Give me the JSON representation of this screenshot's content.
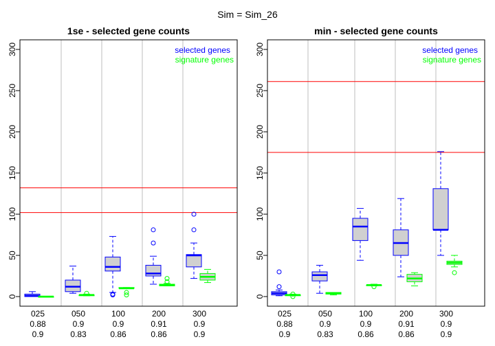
{
  "figure_title": "Sim = Sim_26",
  "colors": {
    "selected": "#0000ff",
    "signature": "#00ff00",
    "box_fill": "#d0d0d0",
    "ref_line": "#ff0000",
    "grid": "#bebebe",
    "axis": "#000000"
  },
  "chart_data": [
    {
      "type": "box",
      "title": "1se - selected gene counts",
      "ylim": [
        0,
        310
      ],
      "yticks": [
        0,
        50,
        100,
        150,
        200,
        250,
        300
      ],
      "categories": [
        "025",
        "050",
        "100",
        "200",
        "300"
      ],
      "category_label_rows": [
        [
          "025",
          "050",
          "100",
          "200",
          "300"
        ],
        [
          "0.88",
          "0.9",
          "0.9",
          "0.91",
          "0.9"
        ],
        [
          "0.9",
          "0.83",
          "0.86",
          "0.86",
          "0.9"
        ]
      ],
      "legend": {
        "position": "top-right",
        "entries": [
          "selected genes",
          "signature genes"
        ]
      },
      "hlines": [
        102,
        132
      ],
      "series": [
        {
          "name": "selected genes",
          "boxes": [
            {
              "wlo": 0,
              "q1": 0,
              "med": 1,
              "q3": 3,
              "whi": 6,
              "outliers": []
            },
            {
              "wlo": 4,
              "q1": 6,
              "med": 12,
              "q3": 20,
              "whi": 37,
              "outliers": []
            },
            {
              "wlo": 5,
              "q1": 31,
              "med": 36,
              "q3": 48,
              "whi": 73,
              "outliers": [
                2,
                3
              ]
            },
            {
              "wlo": 15,
              "q1": 25,
              "med": 28,
              "q3": 38,
              "whi": 49,
              "outliers": [
                65,
                81
              ]
            },
            {
              "wlo": 22,
              "q1": 36,
              "med": 50,
              "q3": 51,
              "whi": 65,
              "outliers": [
                81,
                100
              ]
            }
          ]
        },
        {
          "name": "signature genes",
          "boxes": [
            {
              "wlo": 0,
              "q1": 0,
              "med": 0,
              "q3": 0,
              "whi": 0,
              "outliers": []
            },
            {
              "wlo": 1,
              "q1": 1,
              "med": 2,
              "q3": 2,
              "whi": 3,
              "outliers": [
                4
              ]
            },
            {
              "wlo": 10,
              "q1": 10,
              "med": 10,
              "q3": 11,
              "whi": 11,
              "outliers": [
                2,
                5
              ]
            },
            {
              "wlo": 13,
              "q1": 13,
              "med": 14,
              "q3": 15,
              "whi": 16,
              "outliers": [
                18,
                22
              ]
            },
            {
              "wlo": 17,
              "q1": 20,
              "med": 24,
              "q3": 28,
              "whi": 33,
              "outliers": []
            }
          ]
        }
      ]
    },
    {
      "type": "box",
      "title": "min - selected gene counts",
      "ylim": [
        0,
        310
      ],
      "yticks": [
        0,
        50,
        100,
        150,
        200,
        250,
        300
      ],
      "categories": [
        "025",
        "050",
        "100",
        "200",
        "300"
      ],
      "category_label_rows": [
        [
          "025",
          "050",
          "100",
          "200",
          "300"
        ],
        [
          "0.88",
          "0.9",
          "0.9",
          "0.91",
          "0.9"
        ],
        [
          "0.9",
          "0.83",
          "0.86",
          "0.86",
          "0.9"
        ]
      ],
      "legend": {
        "position": "top-right",
        "entries": [
          "selected genes",
          "signature genes"
        ]
      },
      "hlines": [
        175,
        261
      ],
      "series": [
        {
          "name": "selected genes",
          "boxes": [
            {
              "wlo": 1,
              "q1": 2,
              "med": 4,
              "q3": 6,
              "whi": 8,
              "outliers": [
                12,
                30
              ]
            },
            {
              "wlo": 4,
              "q1": 19,
              "med": 26,
              "q3": 30,
              "whi": 38,
              "outliers": []
            },
            {
              "wlo": 44,
              "q1": 68,
              "med": 85,
              "q3": 95,
              "whi": 107,
              "outliers": []
            },
            {
              "wlo": 24,
              "q1": 50,
              "med": 65,
              "q3": 81,
              "whi": 119,
              "outliers": []
            },
            {
              "wlo": 50,
              "q1": 81,
              "med": 81,
              "q3": 131,
              "whi": 176,
              "outliers": []
            }
          ]
        },
        {
          "name": "signature genes",
          "boxes": [
            {
              "wlo": 1,
              "q1": 1,
              "med": 2,
              "q3": 2,
              "whi": 3,
              "outliers": [
                0,
                3
              ]
            },
            {
              "wlo": 2,
              "q1": 3,
              "med": 4,
              "q3": 5,
              "whi": 5,
              "outliers": []
            },
            {
              "wlo": 13,
              "q1": 14,
              "med": 14,
              "q3": 14,
              "whi": 15,
              "outliers": [
                12
              ]
            },
            {
              "wlo": 13,
              "q1": 18,
              "med": 22,
              "q3": 27,
              "whi": 29,
              "outliers": []
            },
            {
              "wlo": 36,
              "q1": 39,
              "med": 41,
              "q3": 43,
              "whi": 50,
              "outliers": [
                29
              ]
            }
          ]
        }
      ]
    }
  ]
}
